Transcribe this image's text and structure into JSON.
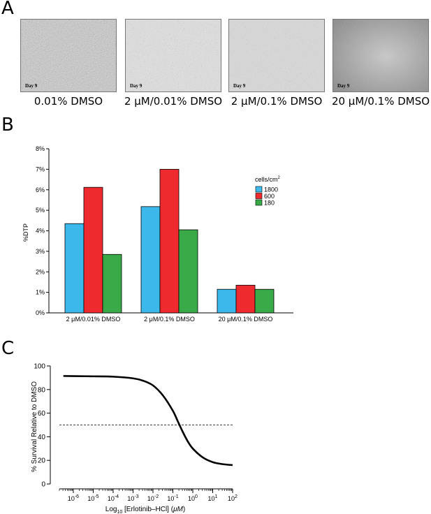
{
  "panels": {
    "a": {
      "letter": "A",
      "images": [
        {
          "label": "Day 9",
          "caption": "0.01% DMSO"
        },
        {
          "label": "Day 9",
          "caption": "2 μM/0.01% DMSO"
        },
        {
          "label": "Day 9",
          "caption": "2 μM/0.1% DMSO"
        },
        {
          "label": "Day 9",
          "caption": "20 μM/0.1% DMSO"
        }
      ]
    },
    "b": {
      "letter": "B"
    },
    "c": {
      "letter": "C"
    }
  },
  "chart_data": [
    {
      "type": "bar",
      "categories": [
        "2 μM/0.01% DMSO",
        "2 μM/0.1% DMSO",
        "20 μM/0.1% DMSO"
      ],
      "series": [
        {
          "name": "1800",
          "color": "#3cb9ea",
          "values": [
            4.35,
            5.18,
            1.15
          ]
        },
        {
          "name": "600",
          "color": "#ee2a2f",
          "values": [
            6.12,
            7.0,
            1.35
          ]
        },
        {
          "name": "180",
          "color": "#3aaa48",
          "values": [
            2.85,
            4.05,
            1.15
          ]
        }
      ],
      "ylabel": "%DTP",
      "ylim": [
        0,
        8
      ],
      "yticks": [
        "0%",
        "1%",
        "2%",
        "3%",
        "4%",
        "5%",
        "6%",
        "7%",
        "8%"
      ],
      "legend_title": "cells/cm",
      "legend_title_sup": "2",
      "legend_position": "right",
      "grid": false
    },
    {
      "type": "line",
      "series": [
        {
          "name": "",
          "color": "#000000",
          "x": [
            -6.5,
            -6,
            -5,
            -4,
            -3,
            -2.5,
            -2,
            -1.5,
            -1,
            -0.75,
            -0.5,
            -0.25,
            0,
            0.5,
            1,
            1.5,
            2
          ],
          "y": [
            91.5,
            91.4,
            91.2,
            90.9,
            89.5,
            87.5,
            83.5,
            75,
            62,
            53,
            44,
            36,
            30,
            22.5,
            18.5,
            16.8,
            16
          ]
        }
      ],
      "reference_line_y": 50,
      "xlabel_prefix": "Log",
      "xlabel_sub": "10",
      "xlabel_rest": " [Erlotinib–HCl] (",
      "xlabel_unit": "μM",
      "xlabel_end": ")",
      "ylabel": "% Survival Relative to DMSO",
      "xlim": [
        -6.7,
        2
      ],
      "ylim": [
        0,
        100
      ],
      "yticks": [
        "0",
        "20",
        "40",
        "60",
        "80",
        "100"
      ],
      "xticks": [
        {
          "base": "10",
          "exp": "-6"
        },
        {
          "base": "10",
          "exp": "-5"
        },
        {
          "base": "10",
          "exp": "-4"
        },
        {
          "base": "10",
          "exp": "-3"
        },
        {
          "base": "10",
          "exp": "-2"
        },
        {
          "base": "10",
          "exp": "-1"
        },
        {
          "base": "10",
          "exp": "0"
        },
        {
          "base": "10",
          "exp": "1"
        },
        {
          "base": "10",
          "exp": "2"
        }
      ],
      "grid": false
    }
  ]
}
